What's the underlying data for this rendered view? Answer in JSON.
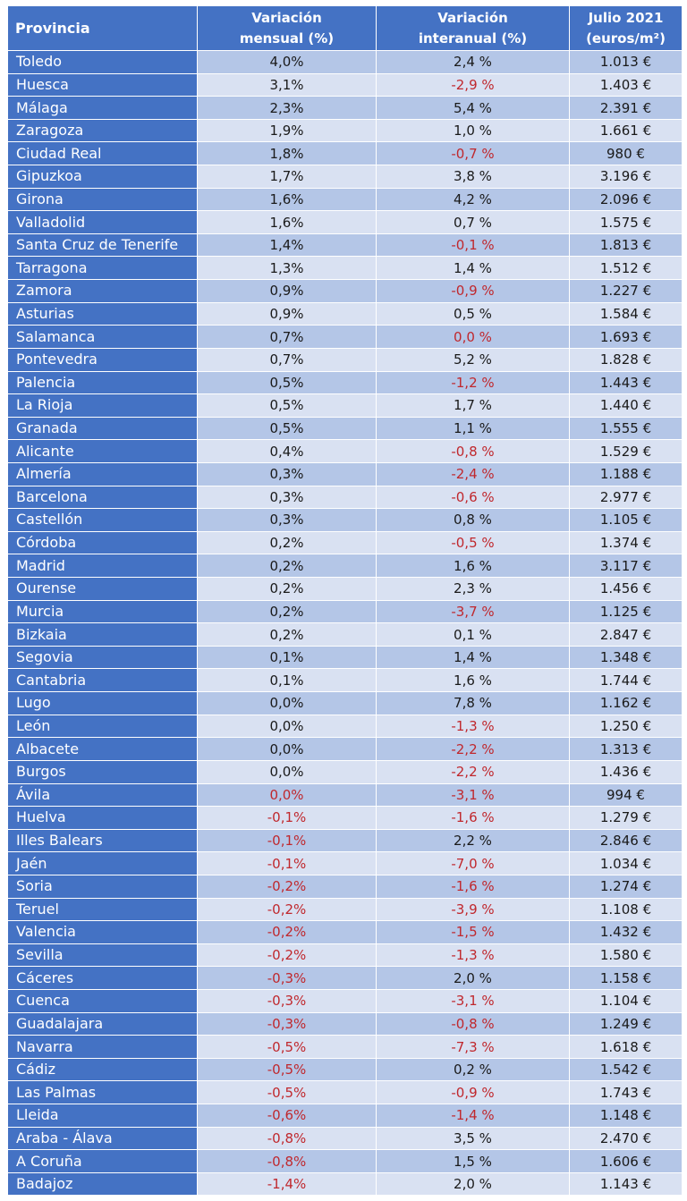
{
  "table": {
    "headers": {
      "provincia": "Provincia",
      "mensual_l1": "Variación",
      "mensual_l2": "mensual (%)",
      "interanual_l1": "Variación",
      "interanual_l2": "interanual (%)",
      "precio_l1": "Julio 2021",
      "precio_l2": "(euros/m²)"
    },
    "rows": [
      {
        "provincia": "Toledo",
        "mensual": "4,0%",
        "interanual": "2,4 %",
        "precio": "1.013 €"
      },
      {
        "provincia": "Huesca",
        "mensual": "3,1%",
        "interanual": "-2,9 %",
        "precio": "1.403 €"
      },
      {
        "provincia": "Málaga",
        "mensual": "2,3%",
        "interanual": "5,4 %",
        "precio": "2.391 €"
      },
      {
        "provincia": "Zaragoza",
        "mensual": "1,9%",
        "interanual": "1,0 %",
        "precio": "1.661 €"
      },
      {
        "provincia": "Ciudad Real",
        "mensual": "1,8%",
        "interanual": "-0,7 %",
        "precio": "980 €"
      },
      {
        "provincia": "Gipuzkoa",
        "mensual": "1,7%",
        "interanual": "3,8 %",
        "precio": "3.196 €"
      },
      {
        "provincia": "Girona",
        "mensual": "1,6%",
        "interanual": "4,2 %",
        "precio": "2.096 €"
      },
      {
        "provincia": "Valladolid",
        "mensual": "1,6%",
        "interanual": "0,7 %",
        "precio": "1.575 €"
      },
      {
        "provincia": "Santa Cruz de Tenerife",
        "mensual": "1,4%",
        "interanual": "-0,1 %",
        "precio": "1.813 €"
      },
      {
        "provincia": "Tarragona",
        "mensual": "1,3%",
        "interanual": "1,4 %",
        "precio": "1.512 €"
      },
      {
        "provincia": "Zamora",
        "mensual": "0,9%",
        "interanual": "-0,9 %",
        "precio": "1.227 €"
      },
      {
        "provincia": "Asturias",
        "mensual": "0,9%",
        "interanual": "0,5 %",
        "precio": "1.584 €"
      },
      {
        "provincia": "Salamanca",
        "mensual": "0,7%",
        "interanual": "0,0 %",
        "precio": "1.693 €",
        "interanual_red": true
      },
      {
        "provincia": "Pontevedra",
        "mensual": "0,7%",
        "interanual": "5,2 %",
        "precio": "1.828 €"
      },
      {
        "provincia": "Palencia",
        "mensual": "0,5%",
        "interanual": "-1,2 %",
        "precio": "1.443 €"
      },
      {
        "provincia": "La Rioja",
        "mensual": "0,5%",
        "interanual": "1,7 %",
        "precio": "1.440 €"
      },
      {
        "provincia": "Granada",
        "mensual": "0,5%",
        "interanual": "1,1 %",
        "precio": "1.555 €"
      },
      {
        "provincia": "Alicante",
        "mensual": "0,4%",
        "interanual": "-0,8 %",
        "precio": "1.529 €"
      },
      {
        "provincia": "Almería",
        "mensual": "0,3%",
        "interanual": "-2,4 %",
        "precio": "1.188 €"
      },
      {
        "provincia": "Barcelona",
        "mensual": "0,3%",
        "interanual": "-0,6 %",
        "precio": "2.977 €"
      },
      {
        "provincia": "Castellón",
        "mensual": "0,3%",
        "interanual": "0,8 %",
        "precio": "1.105 €"
      },
      {
        "provincia": "Córdoba",
        "mensual": "0,2%",
        "interanual": "-0,5 %",
        "precio": "1.374 €"
      },
      {
        "provincia": "Madrid",
        "mensual": "0,2%",
        "interanual": "1,6 %",
        "precio": "3.117 €"
      },
      {
        "provincia": "Ourense",
        "mensual": "0,2%",
        "interanual": "2,3 %",
        "precio": "1.456 €"
      },
      {
        "provincia": "Murcia",
        "mensual": "0,2%",
        "interanual": "-3,7 %",
        "precio": "1.125 €"
      },
      {
        "provincia": "Bizkaia",
        "mensual": "0,2%",
        "interanual": "0,1 %",
        "precio": "2.847 €"
      },
      {
        "provincia": "Segovia",
        "mensual": "0,1%",
        "interanual": "1,4 %",
        "precio": "1.348 €"
      },
      {
        "provincia": "Cantabria",
        "mensual": "0,1%",
        "interanual": "1,6 %",
        "precio": "1.744 €"
      },
      {
        "provincia": "Lugo",
        "mensual": "0,0%",
        "interanual": "7,8 %",
        "precio": "1.162 €"
      },
      {
        "provincia": "León",
        "mensual": "0,0%",
        "interanual": "-1,3 %",
        "precio": "1.250 €"
      },
      {
        "provincia": "Albacete",
        "mensual": "0,0%",
        "interanual": "-2,2 %",
        "precio": "1.313 €"
      },
      {
        "provincia": "Burgos",
        "mensual": "0,0%",
        "interanual": "-2,2 %",
        "precio": "1.436 €"
      },
      {
        "provincia": "Ávila",
        "mensual": "0,0%",
        "interanual": "-3,1 %",
        "precio": "994 €",
        "mensual_red": true
      },
      {
        "provincia": "Huelva",
        "mensual": "-0,1%",
        "interanual": "-1,6 %",
        "precio": "1.279 €"
      },
      {
        "provincia": "Illes Balears",
        "mensual": "-0,1%",
        "interanual": "2,2 %",
        "precio": "2.846 €"
      },
      {
        "provincia": "Jaén",
        "mensual": "-0,1%",
        "interanual": "-7,0 %",
        "precio": "1.034 €"
      },
      {
        "provincia": "Soria",
        "mensual": "-0,2%",
        "interanual": "-1,6 %",
        "precio": "1.274 €"
      },
      {
        "provincia": "Teruel",
        "mensual": "-0,2%",
        "interanual": "-3,9 %",
        "precio": "1.108 €"
      },
      {
        "provincia": "Valencia",
        "mensual": "-0,2%",
        "interanual": "-1,5 %",
        "precio": "1.432 €"
      },
      {
        "provincia": "Sevilla",
        "mensual": "-0,2%",
        "interanual": "-1,3 %",
        "precio": "1.580 €"
      },
      {
        "provincia": "Cáceres",
        "mensual": "-0,3%",
        "interanual": "2,0 %",
        "precio": "1.158 €"
      },
      {
        "provincia": "Cuenca",
        "mensual": "-0,3%",
        "interanual": "-3,1 %",
        "precio": "1.104 €"
      },
      {
        "provincia": "Guadalajara",
        "mensual": "-0,3%",
        "interanual": "-0,8 %",
        "precio": "1.249 €"
      },
      {
        "provincia": "Navarra",
        "mensual": "-0,5%",
        "interanual": "-7,3 %",
        "precio": "1.618 €"
      },
      {
        "provincia": "Cádiz",
        "mensual": "-0,5%",
        "interanual": "0,2 %",
        "precio": "1.542 €"
      },
      {
        "provincia": "Las Palmas",
        "mensual": "-0,5%",
        "interanual": "-0,9 %",
        "precio": "1.743 €"
      },
      {
        "provincia": "Lleida",
        "mensual": "-0,6%",
        "interanual": "-1,4 %",
        "precio": "1.148 €"
      },
      {
        "provincia": "Araba - Álava",
        "mensual": "-0,8%",
        "interanual": "3,5 %",
        "precio": "2.470 €"
      },
      {
        "provincia": "A Coruña",
        "mensual": "-0,8%",
        "interanual": "1,5 %",
        "precio": "1.606 €"
      },
      {
        "provincia": "Badajoz",
        "mensual": "-1,4%",
        "interanual": "2,0 %",
        "precio": "1.143 €"
      }
    ]
  },
  "colors": {
    "header_bg": "#4472c4",
    "row_odd": "#b4c6e7",
    "row_even": "#d9e1f2",
    "negative_text": "#c0282d"
  }
}
